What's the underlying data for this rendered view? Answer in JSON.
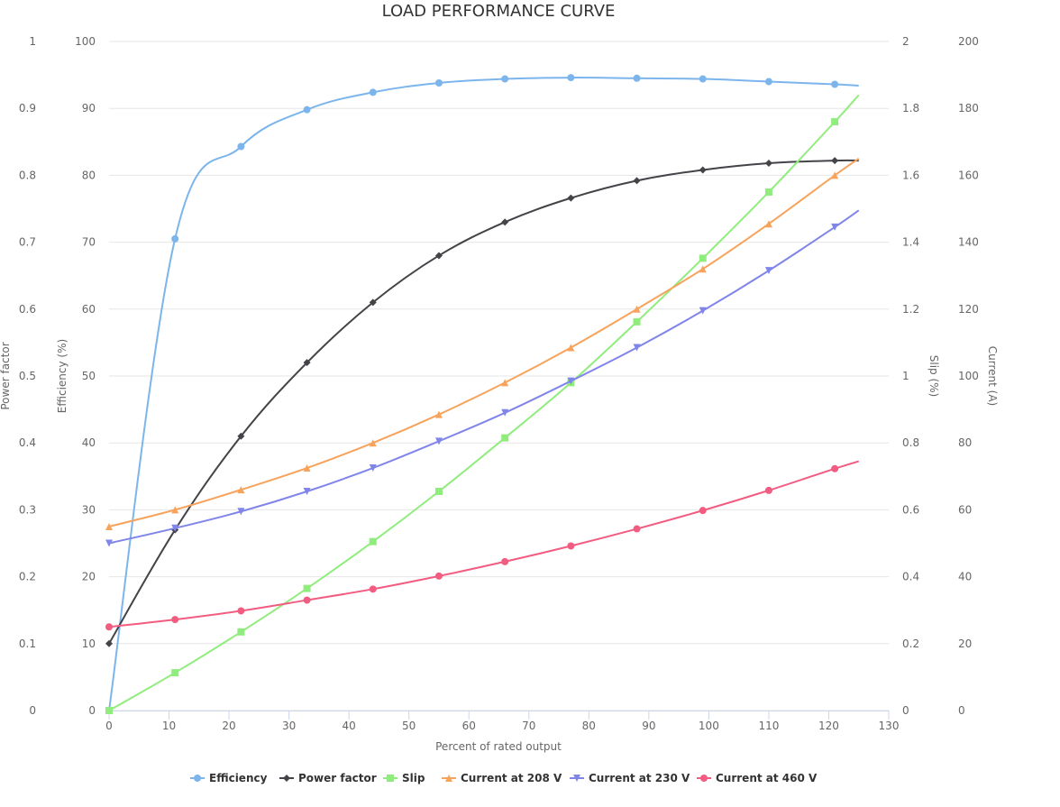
{
  "chart_data": {
    "type": "line",
    "title": "LOAD PERFORMANCE CURVE",
    "xlabel": "Percent of rated output",
    "xlim": [
      0,
      130
    ],
    "x_ticks": [
      0,
      10,
      20,
      30,
      40,
      50,
      60,
      70,
      80,
      90,
      100,
      110,
      120,
      130
    ],
    "grid": true,
    "legend_position": "bottom-center",
    "axes": [
      {
        "id": "pf",
        "title": "Power factor",
        "side": "left",
        "min": 0,
        "max": 1,
        "ticks": [
          "0",
          "0.1",
          "0.2",
          "0.3",
          "0.4",
          "0.5",
          "0.6",
          "0.7",
          "0.8",
          "0.9",
          "1"
        ]
      },
      {
        "id": "eff",
        "title": "Efficiency (%)",
        "side": "left",
        "min": 0,
        "max": 100,
        "ticks": [
          "0",
          "10",
          "20",
          "30",
          "40",
          "50",
          "60",
          "70",
          "80",
          "90",
          "100"
        ]
      },
      {
        "id": "slip",
        "title": "Slip (%)",
        "side": "right",
        "min": 0,
        "max": 2,
        "ticks": [
          "0",
          "0.2",
          "0.4",
          "0.6",
          "0.8",
          "1",
          "1.2",
          "1.4",
          "1.6",
          "1.8",
          "2"
        ]
      },
      {
        "id": "cur",
        "title": "Current (A)",
        "side": "right",
        "min": 0,
        "max": 200,
        "ticks": [
          "0",
          "20",
          "40",
          "60",
          "80",
          "100",
          "120",
          "140",
          "160",
          "180",
          "200"
        ]
      }
    ],
    "series": [
      {
        "name": "Efficiency",
        "axis": "eff",
        "color": "#7cb5ec",
        "marker": "circle",
        "x": [
          0,
          11,
          22,
          33,
          44,
          55,
          66,
          77,
          88,
          99,
          110,
          121
        ],
        "values": [
          0,
          70.5,
          84.3,
          89.8,
          92.4,
          93.8,
          94.4,
          94.6,
          94.5,
          94.4,
          94.0,
          93.6
        ],
        "end": [
          125,
          93.4
        ]
      },
      {
        "name": "Power factor",
        "axis": "pf",
        "color": "#434348",
        "marker": "diamond",
        "x": [
          0,
          11,
          22,
          33,
          44,
          55,
          66,
          77,
          88,
          99,
          110,
          121
        ],
        "values": [
          0.1,
          0.27,
          0.41,
          0.52,
          0.61,
          0.68,
          0.73,
          0.766,
          0.792,
          0.808,
          0.818,
          0.822
        ],
        "end": [
          125,
          0.822
        ]
      },
      {
        "name": "Slip",
        "axis": "slip",
        "color": "#90ed7d",
        "marker": "square",
        "x": [
          0,
          11,
          22,
          33,
          44,
          55,
          66,
          77,
          88,
          99,
          110,
          121
        ],
        "values": [
          0.0,
          0.113,
          0.235,
          0.365,
          0.505,
          0.655,
          0.815,
          0.98,
          1.162,
          1.352,
          1.55,
          1.76
        ],
        "end": [
          125,
          1.84
        ]
      },
      {
        "name": "Current at 208 V",
        "axis": "cur",
        "color": "#f7a35c",
        "marker": "triangle",
        "x": [
          0,
          11,
          22,
          33,
          44,
          55,
          66,
          77,
          88,
          99,
          110,
          121
        ],
        "values": [
          55,
          60,
          66,
          72.5,
          80,
          88.5,
          98,
          108.5,
          120,
          132,
          145.5,
          160
        ],
        "end": [
          125,
          165
        ]
      },
      {
        "name": "Current at 230 V",
        "axis": "cur",
        "color": "#8085e9",
        "marker": "triangle-down",
        "x": [
          0,
          11,
          22,
          33,
          44,
          55,
          66,
          77,
          88,
          99,
          110,
          121
        ],
        "values": [
          50,
          54.5,
          59.5,
          65.5,
          72.5,
          80.5,
          89,
          98.5,
          108.5,
          119.5,
          131.5,
          144.5
        ],
        "end": [
          125,
          149.5
        ]
      },
      {
        "name": "Current at 460 V",
        "axis": "cur",
        "color": "#f15c80",
        "marker": "circle",
        "x": [
          0,
          11,
          22,
          33,
          44,
          55,
          66,
          77,
          88,
          99,
          110,
          121
        ],
        "values": [
          25,
          27.2,
          29.8,
          33,
          36.3,
          40.2,
          44.5,
          49.2,
          54.3,
          59.8,
          65.8,
          72.3
        ],
        "end": [
          125,
          74.5
        ]
      }
    ]
  }
}
